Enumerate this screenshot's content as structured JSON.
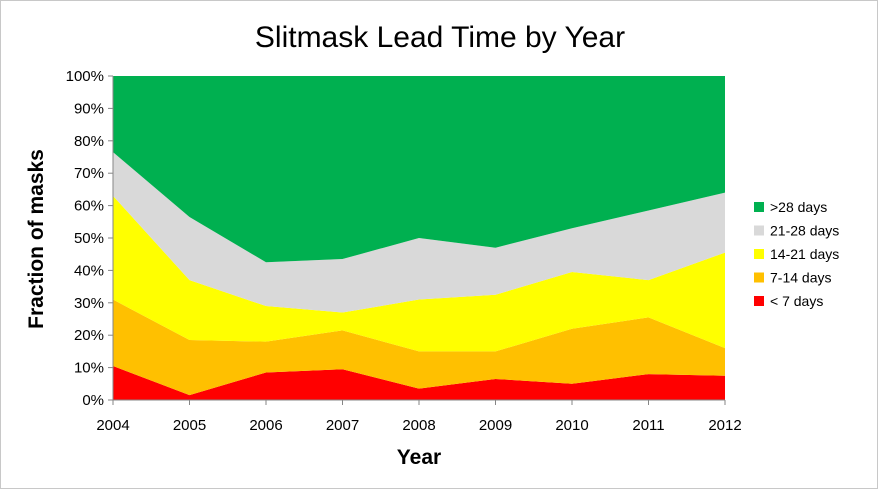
{
  "chart_data": {
    "type": "area",
    "stacked": true,
    "title": "Slitmask Lead Time by Year",
    "xlabel": "Year",
    "ylabel": "Fraction of masks",
    "x": [
      2004,
      2005,
      2006,
      2007,
      2008,
      2009,
      2010,
      2011,
      2012
    ],
    "ylim": [
      0,
      1
    ],
    "yticks": [
      "0%",
      "10%",
      "20%",
      "30%",
      "40%",
      "50%",
      "60%",
      "70%",
      "80%",
      "90%",
      "100%"
    ],
    "grid": false,
    "legend_position": "right",
    "series": [
      {
        "name": "< 7 days",
        "color": "#ff0000",
        "values": [
          0.105,
          0.015,
          0.085,
          0.095,
          0.035,
          0.065,
          0.05,
          0.08,
          0.075
        ]
      },
      {
        "name": "7-14 days",
        "color": "#ffc000",
        "values": [
          0.205,
          0.17,
          0.095,
          0.12,
          0.115,
          0.085,
          0.17,
          0.175,
          0.085
        ]
      },
      {
        "name": "14-21 days",
        "color": "#ffff00",
        "values": [
          0.32,
          0.185,
          0.11,
          0.055,
          0.16,
          0.175,
          0.175,
          0.115,
          0.295
        ]
      },
      {
        "name": "21-28 days",
        "color": "#d9d9d9",
        "values": [
          0.135,
          0.195,
          0.135,
          0.165,
          0.19,
          0.145,
          0.135,
          0.215,
          0.185
        ]
      },
      {
        "name": ">28 days",
        "color": "#00b050",
        "values": [
          0.235,
          0.435,
          0.575,
          0.565,
          0.5,
          0.53,
          0.47,
          0.415,
          0.36
        ]
      }
    ]
  }
}
